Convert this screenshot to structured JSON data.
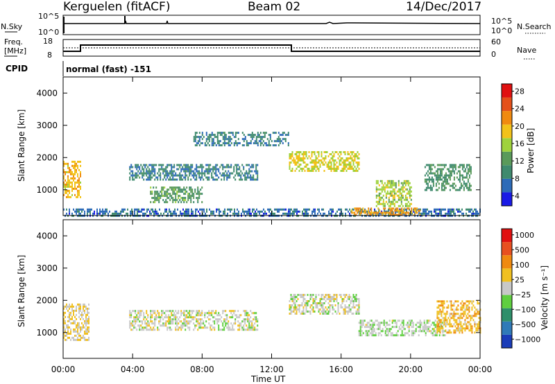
{
  "header": {
    "station": "Kerguelen (fitACF)",
    "beam": "Beam 02",
    "date": "14/Dec/2017"
  },
  "top_panels": {
    "nsky_label": "N.Sky",
    "nsearch_label": "N.Search",
    "freq_label_1": "Freq.",
    "freq_label_2": "[MHz]",
    "nave_label": "Nave",
    "cpid_label": "CPID",
    "cpid_text": "normal (fast) -151",
    "noise_left_ticks": [
      "10^5",
      "10^0"
    ],
    "noise_right_ticks": [
      "10^5",
      "10^0"
    ],
    "freq_ticks": [
      "18",
      "8"
    ],
    "nave_ticks": [
      "60",
      "0"
    ]
  },
  "colors": {
    "power_scale": [
      "#1a1ae6",
      "#2d6bb8",
      "#3f8a6e",
      "#5a9a5a",
      "#9fd23c",
      "#f2c21a",
      "#f08a10",
      "#e4501a",
      "#e01010"
    ],
    "velocity_scale": [
      "#1a3cb8",
      "#2f7ab8",
      "#2e8f6a",
      "#5fcf3f",
      "#c8c8c8",
      "#f0c020",
      "#f08a10",
      "#e85020",
      "#e01010"
    ]
  },
  "chart_data": [
    {
      "type": "heatmap",
      "name": "power",
      "ylabel": "Slant Range [km]",
      "ylim": [
        200,
        4500
      ],
      "yticks": [
        "4000",
        "3000",
        "2000",
        "1000"
      ],
      "xlim": [
        0,
        24
      ],
      "xticks": [
        "00:00",
        "04:00",
        "08:00",
        "12:00",
        "16:00",
        "20:00",
        "00:00"
      ],
      "colorbar_label": "Power [dB]",
      "colorbar_ticks": [
        "28",
        "24",
        "20",
        "16",
        "12",
        "8",
        "4"
      ],
      "echo_regions": [
        {
          "t": [
            0.0,
            1.0
          ],
          "r": [
            800,
            1900
          ],
          "v": 20
        },
        {
          "t": [
            0.0,
            24.0
          ],
          "r": [
            200,
            420
          ],
          "v": 6
        },
        {
          "t": [
            3.8,
            11.2
          ],
          "r": [
            1300,
            1800
          ],
          "v": 8
        },
        {
          "t": [
            5.0,
            8.0
          ],
          "r": [
            600,
            1100
          ],
          "v": 12
        },
        {
          "t": [
            13.0,
            17.0
          ],
          "r": [
            1600,
            2200
          ],
          "v": 18
        },
        {
          "t": [
            16.5,
            20.5
          ],
          "r": [
            200,
            450
          ],
          "v": 22
        },
        {
          "t": [
            18.0,
            20.0
          ],
          "r": [
            500,
            1300
          ],
          "v": 16
        },
        {
          "t": [
            20.8,
            23.5
          ],
          "r": [
            1000,
            1800
          ],
          "v": 10
        },
        {
          "t": [
            7.5,
            13.0
          ],
          "r": [
            2400,
            2800
          ],
          "v": 8
        }
      ]
    },
    {
      "type": "heatmap",
      "name": "velocity",
      "ylabel": "Slant Range [km]",
      "ylim": [
        200,
        4500
      ],
      "yticks": [
        "4000",
        "3000",
        "2000",
        "1000"
      ],
      "xlim": [
        0,
        24
      ],
      "xlabel": "Time UT",
      "xticks": [
        "00:00",
        "04:00",
        "08:00",
        "12:00",
        "16:00",
        "20:00",
        "00:00"
      ],
      "colorbar_label": "Velocity [m s⁻¹]",
      "colorbar_ticks": [
        "1000",
        "500",
        "100",
        "25",
        "−25",
        "−100",
        "−500",
        "−1000"
      ],
      "echo_regions": [
        {
          "t": [
            0.0,
            1.5
          ],
          "r": [
            800,
            1900
          ],
          "v": 150
        },
        {
          "t": [
            3.8,
            11.2
          ],
          "r": [
            1100,
            1700
          ],
          "v": 0
        },
        {
          "t": [
            13.0,
            17.0
          ],
          "r": [
            1600,
            2200
          ],
          "v": 0
        },
        {
          "t": [
            17.0,
            22.0
          ],
          "r": [
            900,
            1400
          ],
          "v": -60
        },
        {
          "t": [
            21.5,
            24.0
          ],
          "r": [
            1000,
            2000
          ],
          "v": 300
        }
      ]
    }
  ]
}
